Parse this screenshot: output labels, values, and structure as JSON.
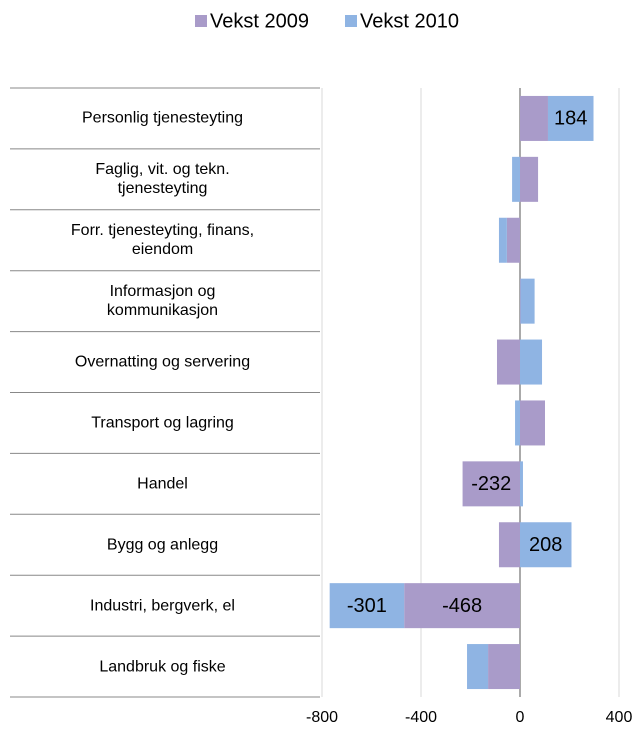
{
  "chart_data": {
    "type": "stacked_barh",
    "categories": [
      "Personlig tjenesteyting",
      "Faglig, vit. og tekn.\ntjenesteyting",
      "Forr. tjenesteyting, finans,\neiendom",
      "Informasjon og\nkommunikasjon",
      "Overnatting og servering",
      "Transport og lagring",
      "Handel",
      "Bygg og anlegg",
      "Industri, bergverk, el",
      "Landbruk og fiske"
    ],
    "series": [
      {
        "name": "Vekst 2009",
        "color": "#a99bc9",
        "values": [
          113,
          73,
          -53,
          2,
          -93,
          101,
          -232,
          -85,
          -468,
          -129
        ],
        "value_labels": [
          null,
          null,
          null,
          null,
          null,
          null,
          "-232",
          null,
          "-468",
          null
        ]
      },
      {
        "name": "Vekst 2010",
        "color": "#8fb4e3",
        "values": [
          184,
          -32,
          -32,
          57,
          89,
          -20,
          12,
          208,
          -301,
          -85
        ],
        "value_labels": [
          "184",
          null,
          null,
          null,
          null,
          null,
          null,
          "208",
          "-301",
          null
        ]
      }
    ],
    "xlim": [
      -800,
      400
    ],
    "xticks": [
      -800,
      -400,
      0,
      400
    ],
    "grid": true,
    "legend": "top"
  }
}
